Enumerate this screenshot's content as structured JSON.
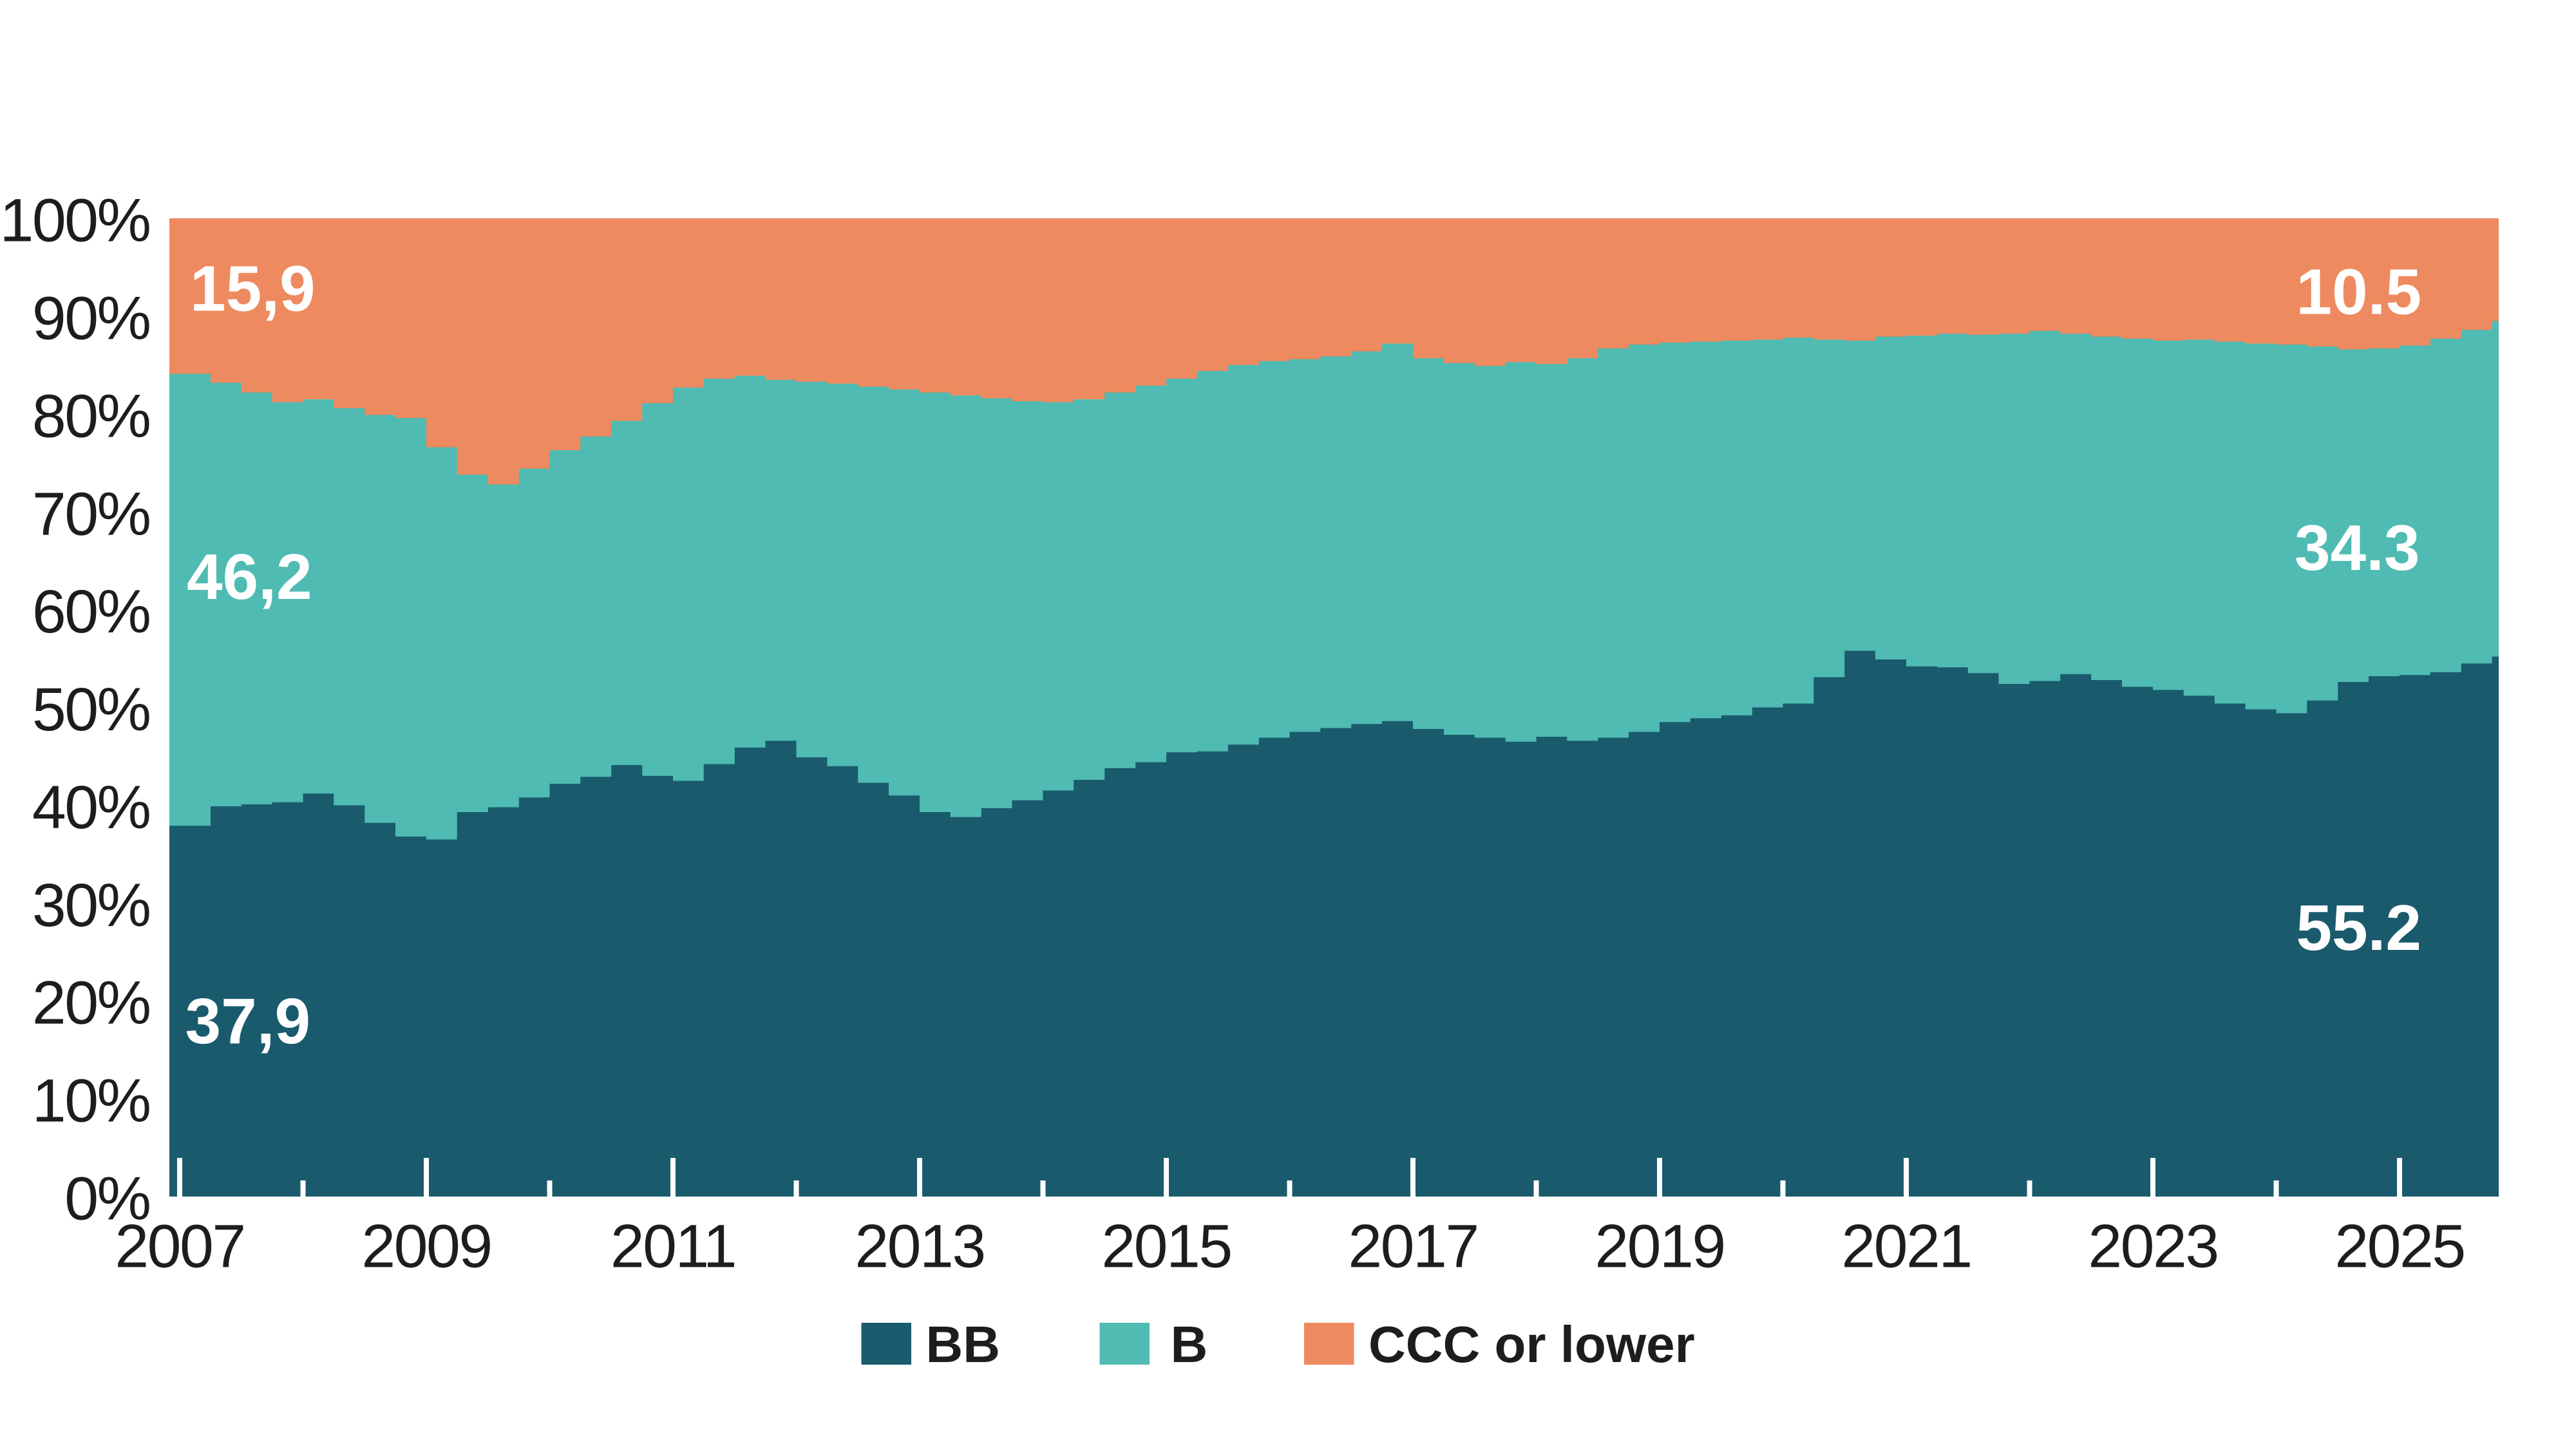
{
  "chart_data": {
    "type": "area",
    "subtype": "stacked-100-percent-step",
    "title": "",
    "x_start": 2007.0,
    "x_step": 0.25,
    "x_end": 2025.75,
    "ylim": [
      0,
      100
    ],
    "grid": false,
    "legend_position": "bottom-center",
    "x_tick_years_labeled": [
      2007,
      2009,
      2011,
      2013,
      2015,
      2017,
      2019,
      2021,
      2023,
      2025
    ],
    "x_tick_years_minor": [
      2008,
      2010,
      2012,
      2014,
      2016,
      2018,
      2020,
      2022,
      2024
    ],
    "series": [
      {
        "name": "BB",
        "color": "#1A5A6D",
        "values": [
          37.9,
          39.9,
          40.1,
          40.3,
          41.2,
          40.0,
          38.2,
          36.8,
          36.5,
          39.3,
          39.8,
          40.8,
          42.2,
          42.9,
          44.1,
          43.0,
          42.5,
          44.2,
          45.9,
          46.6,
          44.9,
          44.0,
          42.3,
          41.0,
          39.3,
          38.8,
          39.7,
          40.5,
          41.5,
          42.6,
          43.8,
          44.4,
          45.4,
          45.5,
          46.2,
          46.9,
          47.5,
          47.9,
          48.3,
          48.6,
          47.8,
          47.2,
          46.9,
          46.5,
          47.0,
          46.6,
          46.9,
          47.5,
          48.5,
          48.9,
          49.2,
          50.0,
          50.4,
          53.1,
          55.8,
          54.9,
          54.2,
          54.1,
          53.5,
          52.4,
          52.7,
          53.4,
          52.8,
          52.1,
          51.8,
          51.2,
          50.4,
          49.8,
          49.4,
          50.7,
          52.6,
          53.2,
          53.3,
          53.6,
          54.5,
          55.2
        ]
      },
      {
        "name": "B",
        "color": "#4FBBB2",
        "values": [
          46.2,
          43.3,
          42.1,
          40.9,
          40.3,
          40.6,
          41.7,
          42.8,
          40.1,
          34.5,
          33.0,
          33.6,
          34.1,
          34.8,
          35.2,
          38.1,
          40.2,
          39.4,
          38.0,
          36.9,
          38.4,
          39.1,
          40.5,
          41.5,
          42.9,
          43.1,
          41.9,
          40.8,
          39.7,
          38.9,
          38.4,
          38.5,
          38.2,
          38.9,
          38.8,
          38.5,
          38.1,
          38.0,
          38.1,
          38.6,
          37.9,
          38.0,
          38.0,
          38.8,
          38.1,
          39.1,
          39.8,
          39.6,
          38.8,
          38.5,
          38.3,
          37.6,
          37.4,
          34.5,
          31.7,
          33.0,
          33.8,
          34.1,
          34.6,
          35.8,
          35.8,
          34.8,
          35.1,
          35.6,
          35.7,
          36.4,
          37.0,
          37.4,
          37.7,
          36.2,
          34.0,
          33.5,
          33.7,
          34.1,
          34.1,
          34.3
        ]
      },
      {
        "name": "CCC or lower",
        "color": "#EE8A5F",
        "values": [
          15.9,
          16.8,
          17.8,
          18.8,
          18.5,
          19.4,
          20.1,
          20.4,
          23.4,
          26.2,
          27.2,
          25.6,
          23.7,
          22.3,
          20.7,
          18.9,
          17.3,
          16.4,
          16.1,
          16.5,
          16.7,
          16.9,
          17.2,
          17.5,
          17.8,
          18.1,
          18.4,
          18.7,
          18.8,
          18.5,
          17.8,
          17.1,
          16.4,
          15.6,
          15.0,
          14.6,
          14.4,
          14.1,
          13.6,
          12.8,
          14.3,
          14.8,
          15.1,
          14.7,
          14.9,
          14.3,
          13.3,
          12.9,
          12.7,
          12.6,
          12.5,
          12.4,
          12.2,
          12.4,
          12.5,
          12.1,
          12.0,
          11.8,
          11.9,
          11.8,
          11.5,
          11.8,
          12.1,
          12.3,
          12.5,
          12.4,
          12.6,
          12.8,
          12.9,
          13.1,
          13.4,
          13.3,
          13.0,
          12.3,
          11.4,
          10.5
        ]
      }
    ],
    "annotations": {
      "left": [
        {
          "text": "15,9",
          "series": "CCC or lower"
        },
        {
          "text": "46,2",
          "series": "B"
        },
        {
          "text": "37,9",
          "series": "BB"
        }
      ],
      "right": [
        {
          "text": "10.5",
          "series": "CCC or lower"
        },
        {
          "text": "34.3",
          "series": "B"
        },
        {
          "text": "55.2",
          "series": "BB"
        }
      ]
    }
  },
  "y_axis": {
    "labels": [
      "100%",
      "90%",
      "80%",
      "70%",
      "60%",
      "50%",
      "40%",
      "30%",
      "20%",
      "10%",
      "0%"
    ]
  },
  "x_axis": {
    "labels": [
      "2007",
      "2009",
      "2011",
      "2013",
      "2015",
      "2017",
      "2019",
      "2021",
      "2023",
      "2025"
    ]
  },
  "legend": {
    "items": [
      {
        "label": "BB",
        "color": "#1A5A6D"
      },
      {
        "label": "B",
        "color": "#4FBBB2"
      },
      {
        "label": "CCC or lower",
        "color": "#EE8A5F"
      }
    ]
  },
  "colors": {
    "background": "#FFFFFF",
    "axis_text": "#1D1D1B",
    "tick": "#FFFFFF",
    "value_label_text": "#FFFFFF"
  }
}
